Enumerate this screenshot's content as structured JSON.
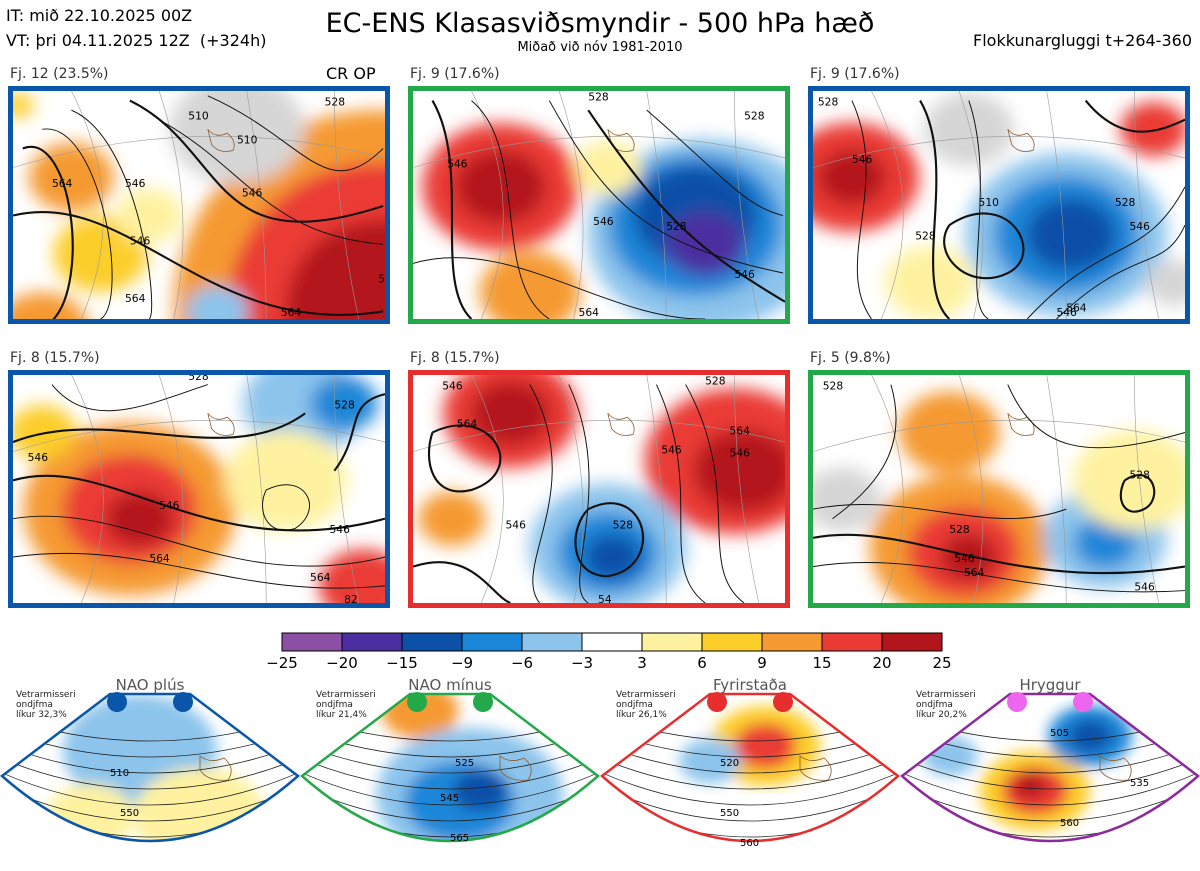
{
  "header": {
    "it_line": "IT: mið 22.10.2025 00Z",
    "vt_line": "VT: þri 04.11.2025 12Z  (+324h)",
    "title": "EC-ENS Klasasviðsmyndir - 500 hPa hæð",
    "subtitle": "Miðað við nóv 1981-2010",
    "window": "Flokkunargluggi t+264-360"
  },
  "cr_op": "CR OP",
  "chart_data": {
    "type": "heatmap",
    "title": "EC-ENS Klasasviðsmyndir - 500 hPa hæð",
    "panels": [
      {
        "label": "Fj. 12 (23.5%)",
        "members": 12,
        "percent": 23.5,
        "border": "#0a56a8",
        "contours": [
          "564",
          "546",
          "528",
          "510",
          "546",
          "564",
          "564",
          "546",
          "528",
          "510"
        ]
      },
      {
        "label": "Fj. 9 (17.6%)",
        "members": 9,
        "percent": 17.6,
        "border": "#23a84a",
        "contours": [
          "546",
          "528",
          "546",
          "528",
          "546",
          "564",
          "528"
        ]
      },
      {
        "label": "Fj. 9 (17.6%)",
        "members": 9,
        "percent": 17.6,
        "border": "#0a56a8",
        "contours": [
          "546",
          "510",
          "528",
          "528",
          "546",
          "546",
          "564",
          "528"
        ]
      },
      {
        "label": "Fj. 8 (15.7%)",
        "members": 8,
        "percent": 15.7,
        "border": "#0a56a8",
        "contours": [
          "546",
          "546",
          "564",
          "528",
          "546",
          "564",
          "528",
          "82"
        ]
      },
      {
        "label": "Fj. 8 (15.7%)",
        "members": 8,
        "percent": 15.7,
        "border": "#e62e2e",
        "contours": [
          "546",
          "564",
          "546",
          "528",
          "546",
          "546",
          "564",
          "528",
          "54"
        ]
      },
      {
        "label": "Fj. 5 (9.8%)",
        "members": 5,
        "percent": 9.8,
        "border": "#23a84a",
        "contours": [
          "528",
          "528",
          "528",
          "546",
          "564",
          "546"
        ]
      }
    ],
    "colorbar": {
      "ticks": [
        -25,
        -20,
        -15,
        -9,
        -6,
        -3,
        3,
        6,
        9,
        15,
        20,
        25
      ],
      "colors": [
        "#8c4fa6",
        "#4b2fa0",
        "#0d50a8",
        "#1a86d8",
        "#8cc4ec",
        "#ffffff",
        "#fef2a0",
        "#fcce2a",
        "#f59a32",
        "#ea3a34",
        "#b3151c"
      ]
    },
    "regimes": [
      {
        "name": "NAO plús",
        "color": "#0a56a8",
        "note": [
          "Vetrarmisseri",
          "ondjfma",
          "líkur 32,3%"
        ],
        "probability": 32.3,
        "contours": [
          "510",
          "550"
        ]
      },
      {
        "name": "NAO mínus",
        "color": "#23a84a",
        "note": [
          "Vetrarmisseri",
          "ondjfma",
          "líkur 21,4%"
        ],
        "probability": 21.4,
        "contours": [
          "525",
          "545",
          "565"
        ]
      },
      {
        "name": "Fyrirstaða",
        "color": "#e62e2e",
        "note": [
          "Vetrarmisseri",
          "ondjfma",
          "líkur 26,1%"
        ],
        "probability": 26.1,
        "contours": [
          "520",
          "550",
          "560"
        ]
      },
      {
        "name": "Hryggur",
        "color": "#8c2c9c",
        "note": [
          "Vetrarmisseri",
          "ondjfma",
          "líkur 20,2%"
        ],
        "probability": 20.2,
        "contours": [
          "505",
          "535",
          "560"
        ]
      }
    ]
  }
}
